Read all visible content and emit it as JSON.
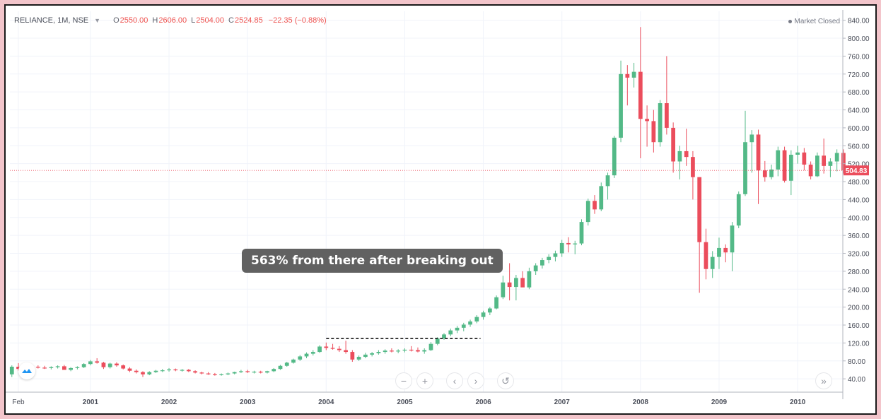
{
  "legend": {
    "symbol": "RELIANCE, 1M, NSE",
    "open_label": "O",
    "open_value": "2550.00",
    "high_label": "H",
    "high_value": "2606.00",
    "low_label": "L",
    "low_value": "2504.00",
    "close_label": "C",
    "close_value": "2524.85",
    "change": "−22.35 (−0.88%)"
  },
  "market_status": "Market Closed",
  "annotation": "563% from there after breaking out",
  "last_price": "504.83",
  "colors": {
    "up": "#26a69a",
    "down": "#ef5350",
    "candle_up": "#53b987",
    "candle_down": "#eb4d5c",
    "callout_bg": "#616161"
  },
  "toolbar": [
    "minus-icon",
    "plus-icon",
    "chevron-left-icon",
    "chevron-right-icon",
    "reset-icon",
    "double-chevron-right-icon"
  ],
  "chart_data": {
    "type": "candlestick",
    "y_ticks": [
      40,
      80,
      120,
      160,
      200,
      240,
      280,
      320,
      360,
      400,
      440,
      480,
      520,
      560,
      600,
      640,
      680,
      720,
      760,
      800,
      840
    ],
    "x_ticks": [
      {
        "t": 2000.083,
        "label": "Feb"
      },
      {
        "t": 2001.0,
        "label": "2001"
      },
      {
        "t": 2002.0,
        "label": "2002"
      },
      {
        "t": 2003.0,
        "label": "2003"
      },
      {
        "t": 2004.0,
        "label": "2004"
      },
      {
        "t": 2005.0,
        "label": "2005"
      },
      {
        "t": 2006.0,
        "label": "2006"
      },
      {
        "t": 2007.0,
        "label": "2007"
      },
      {
        "t": 2008.0,
        "label": "2008"
      },
      {
        "t": 2009.0,
        "label": "2009"
      },
      {
        "t": 2010.0,
        "label": "2010"
      }
    ],
    "ylim": [
      15,
      860
    ],
    "breakout_level": 130,
    "breakout_range": [
      2004.0,
      2006.0
    ],
    "candles": [
      {
        "t": "2000-01",
        "o": 50,
        "h": 70,
        "l": 44,
        "c": 67
      },
      {
        "t": "2000-02",
        "o": 67,
        "h": 75,
        "l": 58,
        "c": 62
      },
      {
        "t": "2000-03",
        "o": 62,
        "h": 72,
        "l": 55,
        "c": 66
      },
      {
        "t": "2000-04",
        "o": 66,
        "h": 70,
        "l": 60,
        "c": 67
      },
      {
        "t": "2000-05",
        "o": 67,
        "h": 70,
        "l": 63,
        "c": 65
      },
      {
        "t": "2000-06",
        "o": 65,
        "h": 69,
        "l": 62,
        "c": 64
      },
      {
        "t": "2000-07",
        "o": 64,
        "h": 68,
        "l": 61,
        "c": 66
      },
      {
        "t": "2000-08",
        "o": 66,
        "h": 70,
        "l": 63,
        "c": 68
      },
      {
        "t": "2000-09",
        "o": 68,
        "h": 71,
        "l": 62,
        "c": 60
      },
      {
        "t": "2000-10",
        "o": 60,
        "h": 66,
        "l": 57,
        "c": 64
      },
      {
        "t": "2000-11",
        "o": 64,
        "h": 68,
        "l": 61,
        "c": 66
      },
      {
        "t": "2000-12",
        "o": 66,
        "h": 75,
        "l": 64,
        "c": 73
      },
      {
        "t": "2001-01",
        "o": 73,
        "h": 82,
        "l": 70,
        "c": 79
      },
      {
        "t": "2001-02",
        "o": 79,
        "h": 86,
        "l": 74,
        "c": 76
      },
      {
        "t": "2001-03",
        "o": 76,
        "h": 78,
        "l": 62,
        "c": 66
      },
      {
        "t": "2001-04",
        "o": 66,
        "h": 76,
        "l": 63,
        "c": 74
      },
      {
        "t": "2001-05",
        "o": 74,
        "h": 77,
        "l": 67,
        "c": 70
      },
      {
        "t": "2001-06",
        "o": 70,
        "h": 72,
        "l": 61,
        "c": 63
      },
      {
        "t": "2001-07",
        "o": 63,
        "h": 66,
        "l": 55,
        "c": 58
      },
      {
        "t": "2001-08",
        "o": 58,
        "h": 61,
        "l": 52,
        "c": 55
      },
      {
        "t": "2001-09",
        "o": 55,
        "h": 57,
        "l": 44,
        "c": 50
      },
      {
        "t": "2001-10",
        "o": 50,
        "h": 57,
        "l": 48,
        "c": 55
      },
      {
        "t": "2001-11",
        "o": 55,
        "h": 60,
        "l": 53,
        "c": 58
      },
      {
        "t": "2001-12",
        "o": 58,
        "h": 62,
        "l": 55,
        "c": 59
      },
      {
        "t": "2002-01",
        "o": 59,
        "h": 64,
        "l": 56,
        "c": 61
      },
      {
        "t": "2002-02",
        "o": 61,
        "h": 63,
        "l": 57,
        "c": 59
      },
      {
        "t": "2002-03",
        "o": 59,
        "h": 62,
        "l": 56,
        "c": 60
      },
      {
        "t": "2002-04",
        "o": 60,
        "h": 62,
        "l": 55,
        "c": 57
      },
      {
        "t": "2002-05",
        "o": 57,
        "h": 59,
        "l": 52,
        "c": 54
      },
      {
        "t": "2002-06",
        "o": 54,
        "h": 56,
        "l": 50,
        "c": 52
      },
      {
        "t": "2002-07",
        "o": 52,
        "h": 55,
        "l": 49,
        "c": 50
      },
      {
        "t": "2002-08",
        "o": 50,
        "h": 53,
        "l": 47,
        "c": 49
      },
      {
        "t": "2002-09",
        "o": 49,
        "h": 52,
        "l": 47,
        "c": 50
      },
      {
        "t": "2002-10",
        "o": 50,
        "h": 54,
        "l": 48,
        "c": 52
      },
      {
        "t": "2002-11",
        "o": 52,
        "h": 56,
        "l": 50,
        "c": 55
      },
      {
        "t": "2002-12",
        "o": 55,
        "h": 60,
        "l": 53,
        "c": 57
      },
      {
        "t": "2003-01",
        "o": 57,
        "h": 60,
        "l": 53,
        "c": 55
      },
      {
        "t": "2003-02",
        "o": 55,
        "h": 58,
        "l": 52,
        "c": 56
      },
      {
        "t": "2003-03",
        "o": 56,
        "h": 58,
        "l": 52,
        "c": 54
      },
      {
        "t": "2003-04",
        "o": 54,
        "h": 58,
        "l": 52,
        "c": 57
      },
      {
        "t": "2003-05",
        "o": 57,
        "h": 64,
        "l": 55,
        "c": 62
      },
      {
        "t": "2003-06",
        "o": 62,
        "h": 71,
        "l": 60,
        "c": 69
      },
      {
        "t": "2003-07",
        "o": 69,
        "h": 78,
        "l": 67,
        "c": 76
      },
      {
        "t": "2003-08",
        "o": 76,
        "h": 85,
        "l": 74,
        "c": 83
      },
      {
        "t": "2003-09",
        "o": 83,
        "h": 93,
        "l": 80,
        "c": 90
      },
      {
        "t": "2003-10",
        "o": 90,
        "h": 99,
        "l": 86,
        "c": 96
      },
      {
        "t": "2003-11",
        "o": 96,
        "h": 104,
        "l": 92,
        "c": 100
      },
      {
        "t": "2003-12",
        "o": 100,
        "h": 115,
        "l": 98,
        "c": 112
      },
      {
        "t": "2004-01",
        "o": 112,
        "h": 121,
        "l": 104,
        "c": 109
      },
      {
        "t": "2004-02",
        "o": 109,
        "h": 118,
        "l": 105,
        "c": 107
      },
      {
        "t": "2004-03",
        "o": 107,
        "h": 113,
        "l": 100,
        "c": 104
      },
      {
        "t": "2004-04",
        "o": 104,
        "h": 125,
        "l": 96,
        "c": 100
      },
      {
        "t": "2004-05",
        "o": 100,
        "h": 104,
        "l": 78,
        "c": 83
      },
      {
        "t": "2004-06",
        "o": 83,
        "h": 92,
        "l": 80,
        "c": 89
      },
      {
        "t": "2004-07",
        "o": 89,
        "h": 98,
        "l": 86,
        "c": 94
      },
      {
        "t": "2004-08",
        "o": 94,
        "h": 100,
        "l": 90,
        "c": 97
      },
      {
        "t": "2004-09",
        "o": 97,
        "h": 104,
        "l": 94,
        "c": 100
      },
      {
        "t": "2004-10",
        "o": 100,
        "h": 106,
        "l": 96,
        "c": 103
      },
      {
        "t": "2004-11",
        "o": 103,
        "h": 108,
        "l": 99,
        "c": 101
      },
      {
        "t": "2004-12",
        "o": 101,
        "h": 106,
        "l": 97,
        "c": 103
      },
      {
        "t": "2005-01",
        "o": 103,
        "h": 108,
        "l": 99,
        "c": 105
      },
      {
        "t": "2005-02",
        "o": 105,
        "h": 113,
        "l": 101,
        "c": 104
      },
      {
        "t": "2005-03",
        "o": 104,
        "h": 110,
        "l": 99,
        "c": 101
      },
      {
        "t": "2005-04",
        "o": 101,
        "h": 108,
        "l": 96,
        "c": 104
      },
      {
        "t": "2005-05",
        "o": 104,
        "h": 122,
        "l": 102,
        "c": 118
      },
      {
        "t": "2005-06",
        "o": 118,
        "h": 133,
        "l": 115,
        "c": 130
      },
      {
        "t": "2005-07",
        "o": 130,
        "h": 142,
        "l": 127,
        "c": 139
      },
      {
        "t": "2005-08",
        "o": 139,
        "h": 152,
        "l": 135,
        "c": 148
      },
      {
        "t": "2005-09",
        "o": 148,
        "h": 158,
        "l": 142,
        "c": 154
      },
      {
        "t": "2005-10",
        "o": 154,
        "h": 165,
        "l": 146,
        "c": 161
      },
      {
        "t": "2005-11",
        "o": 161,
        "h": 172,
        "l": 156,
        "c": 168
      },
      {
        "t": "2005-12",
        "o": 168,
        "h": 182,
        "l": 164,
        "c": 178
      },
      {
        "t": "2006-01",
        "o": 178,
        "h": 192,
        "l": 172,
        "c": 188
      },
      {
        "t": "2006-02",
        "o": 188,
        "h": 200,
        "l": 182,
        "c": 197
      },
      {
        "t": "2006-03",
        "o": 197,
        "h": 226,
        "l": 195,
        "c": 222
      },
      {
        "t": "2006-04",
        "o": 222,
        "h": 270,
        "l": 218,
        "c": 255
      },
      {
        "t": "2006-05",
        "o": 255,
        "h": 298,
        "l": 215,
        "c": 245
      },
      {
        "t": "2006-06",
        "o": 245,
        "h": 272,
        "l": 215,
        "c": 265
      },
      {
        "t": "2006-07",
        "o": 265,
        "h": 280,
        "l": 245,
        "c": 244
      },
      {
        "t": "2006-08",
        "o": 244,
        "h": 288,
        "l": 240,
        "c": 280
      },
      {
        "t": "2006-09",
        "o": 280,
        "h": 298,
        "l": 272,
        "c": 293
      },
      {
        "t": "2006-10",
        "o": 293,
        "h": 310,
        "l": 286,
        "c": 305
      },
      {
        "t": "2006-11",
        "o": 305,
        "h": 318,
        "l": 298,
        "c": 312
      },
      {
        "t": "2006-12",
        "o": 312,
        "h": 326,
        "l": 302,
        "c": 320
      },
      {
        "t": "2007-01",
        "o": 320,
        "h": 350,
        "l": 312,
        "c": 343
      },
      {
        "t": "2007-02",
        "o": 343,
        "h": 356,
        "l": 322,
        "c": 340
      },
      {
        "t": "2007-03",
        "o": 340,
        "h": 348,
        "l": 318,
        "c": 342
      },
      {
        "t": "2007-04",
        "o": 342,
        "h": 396,
        "l": 338,
        "c": 390
      },
      {
        "t": "2007-05",
        "o": 390,
        "h": 442,
        "l": 382,
        "c": 437
      },
      {
        "t": "2007-06",
        "o": 437,
        "h": 450,
        "l": 408,
        "c": 418
      },
      {
        "t": "2007-07",
        "o": 418,
        "h": 478,
        "l": 414,
        "c": 470
      },
      {
        "t": "2007-08",
        "o": 470,
        "h": 500,
        "l": 440,
        "c": 494
      },
      {
        "t": "2007-09",
        "o": 494,
        "h": 582,
        "l": 488,
        "c": 578
      },
      {
        "t": "2007-10",
        "o": 578,
        "h": 750,
        "l": 568,
        "c": 720
      },
      {
        "t": "2007-11",
        "o": 720,
        "h": 740,
        "l": 650,
        "c": 712
      },
      {
        "t": "2007-12",
        "o": 712,
        "h": 745,
        "l": 690,
        "c": 725
      },
      {
        "t": "2008-01",
        "o": 725,
        "h": 825,
        "l": 532,
        "c": 620
      },
      {
        "t": "2008-02",
        "o": 620,
        "h": 650,
        "l": 558,
        "c": 615
      },
      {
        "t": "2008-03",
        "o": 615,
        "h": 640,
        "l": 545,
        "c": 568
      },
      {
        "t": "2008-04",
        "o": 568,
        "h": 662,
        "l": 558,
        "c": 655
      },
      {
        "t": "2008-05",
        "o": 655,
        "h": 760,
        "l": 585,
        "c": 600
      },
      {
        "t": "2008-06",
        "o": 600,
        "h": 612,
        "l": 500,
        "c": 525
      },
      {
        "t": "2008-07",
        "o": 525,
        "h": 560,
        "l": 485,
        "c": 548
      },
      {
        "t": "2008-08",
        "o": 548,
        "h": 598,
        "l": 515,
        "c": 535
      },
      {
        "t": "2008-09",
        "o": 535,
        "h": 548,
        "l": 440,
        "c": 490
      },
      {
        "t": "2008-10",
        "o": 490,
        "h": 490,
        "l": 232,
        "c": 345
      },
      {
        "t": "2008-11",
        "o": 345,
        "h": 375,
        "l": 262,
        "c": 285
      },
      {
        "t": "2008-12",
        "o": 285,
        "h": 325,
        "l": 265,
        "c": 312
      },
      {
        "t": "2009-01",
        "o": 312,
        "h": 355,
        "l": 285,
        "c": 332
      },
      {
        "t": "2009-02",
        "o": 332,
        "h": 340,
        "l": 300,
        "c": 322
      },
      {
        "t": "2009-03",
        "o": 322,
        "h": 390,
        "l": 280,
        "c": 382
      },
      {
        "t": "2009-04",
        "o": 382,
        "h": 458,
        "l": 376,
        "c": 452
      },
      {
        "t": "2009-05",
        "o": 452,
        "h": 638,
        "l": 448,
        "c": 568
      },
      {
        "t": "2009-06",
        "o": 568,
        "h": 595,
        "l": 500,
        "c": 585
      },
      {
        "t": "2009-07",
        "o": 585,
        "h": 596,
        "l": 430,
        "c": 505
      },
      {
        "t": "2009-08",
        "o": 505,
        "h": 526,
        "l": 480,
        "c": 490
      },
      {
        "t": "2009-09",
        "o": 490,
        "h": 518,
        "l": 485,
        "c": 507
      },
      {
        "t": "2009-10",
        "o": 507,
        "h": 558,
        "l": 492,
        "c": 550
      },
      {
        "t": "2009-11",
        "o": 550,
        "h": 558,
        "l": 478,
        "c": 482
      },
      {
        "t": "2009-12",
        "o": 482,
        "h": 550,
        "l": 450,
        "c": 540
      },
      {
        "t": "2010-01",
        "o": 540,
        "h": 560,
        "l": 520,
        "c": 545
      },
      {
        "t": "2010-02",
        "o": 545,
        "h": 555,
        "l": 505,
        "c": 518
      },
      {
        "t": "2010-03",
        "o": 518,
        "h": 525,
        "l": 485,
        "c": 492
      },
      {
        "t": "2010-04",
        "o": 492,
        "h": 545,
        "l": 490,
        "c": 538
      },
      {
        "t": "2010-05",
        "o": 538,
        "h": 576,
        "l": 498,
        "c": 515
      },
      {
        "t": "2010-06",
        "o": 515,
        "h": 532,
        "l": 490,
        "c": 525
      },
      {
        "t": "2010-07",
        "o": 525,
        "h": 552,
        "l": 503,
        "c": 544
      },
      {
        "t": "2010-08",
        "o": 544,
        "h": 552,
        "l": 498,
        "c": 505
      }
    ]
  }
}
